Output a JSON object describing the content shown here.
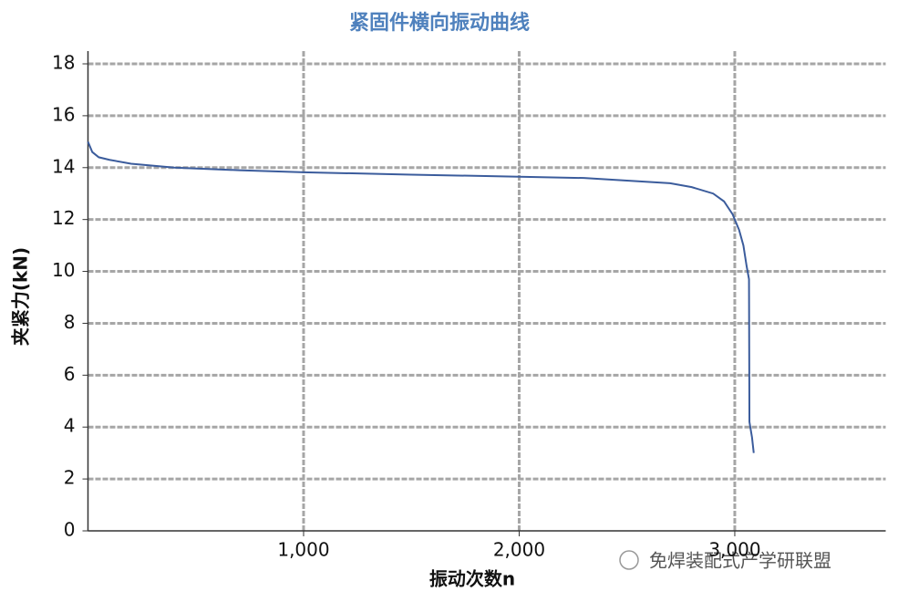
{
  "chart_data": {
    "type": "line",
    "title": "紧固件横向振动曲线",
    "x_label": "振动次数n",
    "y_label": "夹紧力(kN)",
    "annotation": "免焊装配式产学研联盟",
    "x": [
      0,
      20,
      50,
      100,
      200,
      400,
      700,
      1000,
      1500,
      2000,
      2300,
      2500,
      2700,
      2800,
      2900,
      2950,
      2990,
      3020,
      3040,
      3055,
      3066,
      3068,
      3080,
      3088
    ],
    "series": [
      {
        "name": "夹紧力",
        "color": "#3b5c9c",
        "values": [
          15.0,
          14.6,
          14.4,
          14.3,
          14.15,
          14.0,
          13.9,
          13.82,
          13.73,
          13.65,
          13.6,
          13.5,
          13.4,
          13.25,
          13.0,
          12.7,
          12.2,
          11.6,
          11.0,
          10.2,
          9.7,
          4.2,
          3.6,
          3.0
        ]
      }
    ],
    "xlim": [
      0,
      3700
    ],
    "ylim": [
      0,
      18
    ],
    "xticks": [
      {
        "value": 1000,
        "label": "1,000"
      },
      {
        "value": 2000,
        "label": "2,000"
      },
      {
        "value": 3000,
        "label": "3,000"
      }
    ],
    "yticks": [
      0,
      2,
      4,
      6,
      8,
      10,
      12,
      14,
      16,
      18
    ],
    "grid": true
  }
}
